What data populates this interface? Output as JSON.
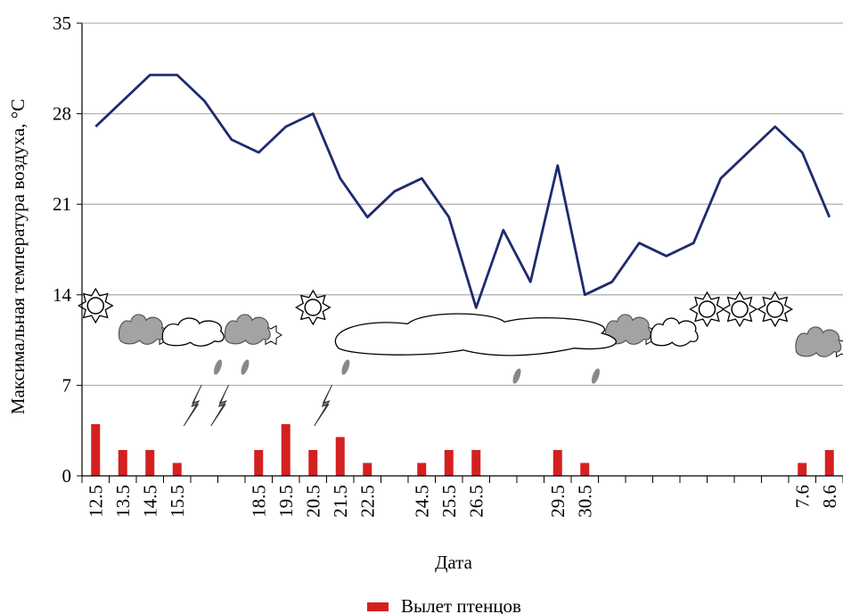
{
  "chart_data": {
    "type": "bar+line",
    "ylabel": "Максимальная температура воздуха,  °С",
    "xlabel": "Дата",
    "ylim": [
      0,
      35
    ],
    "yticks": [
      0,
      7,
      14,
      21,
      28,
      35
    ],
    "grid": true,
    "categories_count": 28,
    "x_tick_labels": [
      {
        "i": 0,
        "label": "12.5"
      },
      {
        "i": 1,
        "label": "13.5"
      },
      {
        "i": 2,
        "label": "14.5"
      },
      {
        "i": 3,
        "label": "15.5"
      },
      {
        "i": 6,
        "label": "18.5"
      },
      {
        "i": 7,
        "label": "19.5"
      },
      {
        "i": 8,
        "label": "20.5"
      },
      {
        "i": 9,
        "label": "21.5"
      },
      {
        "i": 10,
        "label": "22.5"
      },
      {
        "i": 12,
        "label": "24.5"
      },
      {
        "i": 13,
        "label": "25.5"
      },
      {
        "i": 14,
        "label": "26.5"
      },
      {
        "i": 17,
        "label": "29.5"
      },
      {
        "i": 18,
        "label": "30.5"
      },
      {
        "i": 26,
        "label": "7.6"
      },
      {
        "i": 27,
        "label": "8.6"
      }
    ],
    "temperature": [
      27,
      29,
      31,
      31,
      29,
      26,
      25,
      27,
      28,
      23,
      20,
      22,
      23,
      20,
      13,
      19,
      15,
      24,
      14,
      15,
      18,
      17,
      18,
      23,
      25,
      27,
      25,
      20
    ],
    "fledging": {
      "name": "Вылет птенцов",
      "color": "#d42020",
      "values": [
        4,
        2,
        2,
        1,
        0,
        0,
        2,
        4,
        2,
        3,
        1,
        0,
        1,
        2,
        2,
        0,
        0,
        2,
        1,
        0,
        0,
        0,
        0,
        0,
        0,
        0,
        1,
        2
      ]
    },
    "line_color": "#1f2b6e",
    "weather": {
      "sun": [
        0,
        8,
        22.5,
        23.7,
        25
      ],
      "dark_cloud": [
        1.7,
        5.6,
        19.6,
        26.6
      ],
      "white_cloud": [
        3.6,
        21.3
      ],
      "big_white_cloud": [
        [
          9,
          19
        ]
      ],
      "lightning": [
        3.9,
        4.9,
        8.7
      ],
      "raindrop": [
        4.5,
        5.5,
        9.2,
        15.5,
        18.4
      ]
    }
  }
}
